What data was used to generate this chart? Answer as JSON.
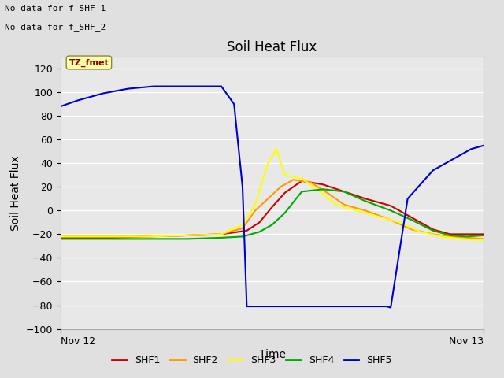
{
  "title": "Soil Heat Flux",
  "xlabel": "Time",
  "ylabel": "Soil Heat Flux",
  "annotation_line1": "No data for f_SHF_1",
  "annotation_line2": "No data for f_SHF_2",
  "tz_label": "TZ_fmet",
  "xlim": [
    0,
    1
  ],
  "ylim": [
    -100,
    130
  ],
  "yticks": [
    -100,
    -80,
    -60,
    -40,
    -20,
    0,
    20,
    40,
    60,
    80,
    100,
    120
  ],
  "xtick_labels": [
    "Nov 12",
    "Nov 13"
  ],
  "xtick_positions": [
    0.0,
    1.0
  ],
  "background_color": "#e0e0e0",
  "plot_bg_color": "#e8e8e8",
  "grid_color": "#ffffff",
  "legend_items": [
    {
      "label": "SHF1",
      "color": "#cc0000"
    },
    {
      "label": "SHF2",
      "color": "#ff9900"
    },
    {
      "label": "SHF3",
      "color": "#ffff00"
    },
    {
      "label": "SHF4",
      "color": "#00aa00"
    },
    {
      "label": "SHF5",
      "color": "#0000cc"
    }
  ],
  "series": {
    "SHF1": {
      "color": "#cc0000",
      "x": [
        0.0,
        0.06,
        0.12,
        0.2,
        0.3,
        0.38,
        0.44,
        0.47,
        0.5,
        0.53,
        0.57,
        0.62,
        0.67,
        0.72,
        0.78,
        0.83,
        0.88,
        0.92,
        0.96,
        1.0
      ],
      "y": [
        -23,
        -23,
        -23,
        -22,
        -21,
        -20,
        -17,
        -10,
        3,
        15,
        25,
        22,
        16,
        10,
        4,
        -6,
        -16,
        -20,
        -20,
        -20
      ]
    },
    "SHF2": {
      "color": "#ff9900",
      "x": [
        0.0,
        0.06,
        0.12,
        0.2,
        0.3,
        0.38,
        0.43,
        0.46,
        0.49,
        0.52,
        0.55,
        0.59,
        0.63,
        0.67,
        0.72,
        0.78,
        0.83,
        0.88,
        0.92,
        0.96,
        1.0
      ],
      "y": [
        -22,
        -22,
        -22,
        -22,
        -21,
        -20,
        -15,
        0,
        10,
        20,
        26,
        24,
        15,
        5,
        0,
        -8,
        -16,
        -20,
        -22,
        -23,
        -24
      ]
    },
    "SHF3": {
      "color": "#ffff00",
      "x": [
        0.0,
        0.06,
        0.12,
        0.2,
        0.3,
        0.38,
        0.43,
        0.46,
        0.49,
        0.51,
        0.53,
        0.57,
        0.61,
        0.65,
        0.7,
        0.75,
        0.8,
        0.85,
        0.9,
        0.95,
        1.0
      ],
      "y": [
        -22,
        -22,
        -22,
        -22,
        -21,
        -20,
        -12,
        5,
        40,
        52,
        30,
        27,
        17,
        5,
        0,
        -5,
        -10,
        -18,
        -22,
        -24,
        -25
      ]
    },
    "SHF4": {
      "color": "#00aa00",
      "x": [
        0.0,
        0.06,
        0.12,
        0.2,
        0.3,
        0.38,
        0.43,
        0.47,
        0.5,
        0.53,
        0.57,
        0.62,
        0.67,
        0.72,
        0.78,
        0.83,
        0.88,
        0.92,
        0.96,
        1.0
      ],
      "y": [
        -24,
        -24,
        -24,
        -24,
        -24,
        -23,
        -22,
        -18,
        -12,
        -2,
        16,
        18,
        16,
        8,
        0,
        -8,
        -17,
        -21,
        -22,
        -21
      ]
    },
    "SHF5": {
      "color": "#0000cc",
      "x": [
        0.0,
        0.04,
        0.1,
        0.16,
        0.22,
        0.34,
        0.38,
        0.41,
        0.43,
        0.44,
        0.77,
        0.78,
        0.82,
        0.88,
        0.93,
        0.97,
        1.0
      ],
      "y": [
        88,
        93,
        99,
        103,
        105,
        105,
        105,
        90,
        20,
        -81,
        -81,
        -82,
        10,
        34,
        44,
        52,
        55
      ]
    }
  }
}
